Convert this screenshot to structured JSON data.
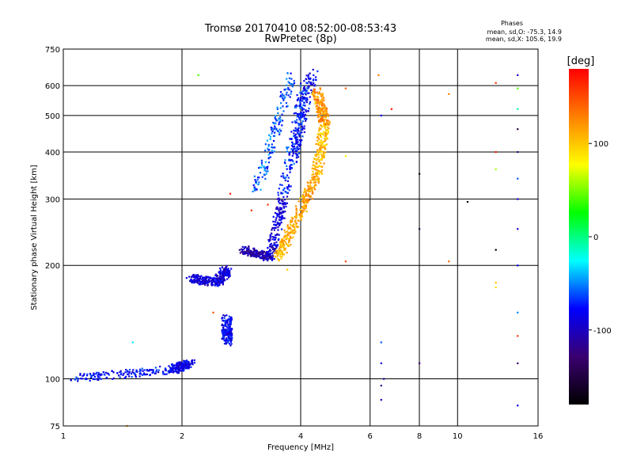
{
  "chart_data": {
    "type": "scatter",
    "title": "Tromsø 20170410 08:52:00-08:53:43",
    "subtitle": "RwPretec (8p)",
    "xlabel": "Frequency [MHz]",
    "ylabel": "Stationary phase Virtual Height [km]",
    "x_scale": "log",
    "y_scale": "log",
    "xlim": [
      1,
      16
    ],
    "ylim": [
      75,
      750
    ],
    "x_ticks": [
      "1",
      "2",
      "4",
      "6",
      "8",
      "10",
      "16"
    ],
    "y_ticks": [
      "75",
      "100",
      "200",
      "300",
      "400",
      "500",
      "600",
      "750"
    ],
    "grid": true,
    "legend": {
      "title": "Phases",
      "lines": [
        "mean, sd,O: -75.3, 14.9",
        "mean, sd,X: 105.6, 19.9"
      ]
    },
    "colorbar": {
      "label": "[deg]",
      "range": [
        -180,
        180
      ],
      "ticks": [
        "100",
        "0",
        "-100"
      ],
      "colors": [
        "#000000",
        "#3a0070",
        "#0000ff",
        "#00ffff",
        "#00ff00",
        "#ffff00",
        "#ff8000",
        "#ff0000"
      ]
    },
    "series": [
      {
        "mode": "O",
        "mean_phase": -75.3,
        "traces": [
          {
            "from": [
              1.05,
              100
            ],
            "to": [
              1.9,
              106
            ],
            "phase": -80
          },
          {
            "from": [
              1.9,
              106
            ],
            "to": [
              2.1,
              110
            ],
            "phase": -85
          },
          {
            "from": [
              2.1,
              185
            ],
            "to": [
              2.45,
              180
            ],
            "phase": -90
          },
          {
            "from": [
              2.45,
              180
            ],
            "to": [
              2.6,
              195
            ],
            "phase": -90
          },
          {
            "from": [
              2.6,
              125
            ],
            "to": [
              2.6,
              145
            ],
            "phase": -80
          },
          {
            "from": [
              2.85,
              220
            ],
            "to": [
              3.35,
              210
            ],
            "phase": -110
          },
          {
            "from": [
              3.35,
              210
            ],
            "to": [
              3.6,
              300
            ],
            "phase": -90
          },
          {
            "from": [
              3.6,
              300
            ],
            "to": [
              4.1,
              620
            ],
            "phase": -70
          },
          {
            "from": [
              3.1,
              320
            ],
            "to": [
              3.8,
              640
            ],
            "phase": -60
          },
          {
            "from": [
              3.8,
              380
            ],
            "to": [
              4.3,
              650
            ],
            "phase": -80
          }
        ]
      },
      {
        "mode": "X",
        "mean_phase": 105.6,
        "traces": [
          {
            "from": [
              3.5,
              210
            ],
            "to": [
              3.9,
              265
            ],
            "phase": 110
          },
          {
            "from": [
              3.9,
              265
            ],
            "to": [
              4.4,
              350
            ],
            "phase": 115
          },
          {
            "from": [
              4.4,
              350
            ],
            "to": [
              4.6,
              480
            ],
            "phase": 105
          },
          {
            "from": [
              4.6,
              480
            ],
            "to": [
              4.4,
              580
            ],
            "phase": 120
          }
        ]
      },
      {
        "mode": "noise",
        "points": [
          [
            6.4,
            88,
            -100
          ],
          [
            6.4,
            96,
            -120
          ],
          [
            6.4,
            110,
            -90
          ],
          [
            6.4,
            125,
            -60
          ],
          [
            6.5,
            100,
            -110
          ],
          [
            6.4,
            500,
            -80
          ],
          [
            6.8,
            520,
            170
          ],
          [
            6.3,
            640,
            130
          ],
          [
            8.0,
            110,
            -130
          ],
          [
            8.0,
            250,
            -150
          ],
          [
            8.0,
            350,
            -170
          ],
          [
            9.5,
            570,
            130
          ],
          [
            9.5,
            205,
            140
          ],
          [
            10.6,
            295,
            -170
          ],
          [
            12.5,
            610,
            160
          ],
          [
            12.5,
            400,
            170
          ],
          [
            12.5,
            360,
            60
          ],
          [
            12.5,
            180,
            100
          ],
          [
            12.5,
            220,
            -180
          ],
          [
            12.5,
            175,
            90
          ],
          [
            14.2,
            640,
            -100
          ],
          [
            14.2,
            590,
            40
          ],
          [
            14.2,
            520,
            -10
          ],
          [
            14.2,
            400,
            -120
          ],
          [
            14.2,
            300,
            -90
          ],
          [
            14.2,
            200,
            -80
          ],
          [
            14.2,
            150,
            -50
          ],
          [
            14.2,
            130,
            160
          ],
          [
            14.2,
            110,
            -130
          ],
          [
            14.2,
            85,
            -80
          ],
          [
            14.2,
            460,
            -150
          ],
          [
            14.2,
            340,
            -60
          ],
          [
            14.2,
            250,
            -100
          ],
          [
            2.2,
            640,
            40
          ],
          [
            5.2,
            590,
            140
          ],
          [
            5.2,
            390,
            80
          ],
          [
            5.2,
            205,
            150
          ],
          [
            2.4,
            150,
            150
          ],
          [
            1.5,
            125,
            -30
          ],
          [
            3.3,
            290,
            160
          ],
          [
            3.0,
            280,
            160
          ],
          [
            3.7,
            195,
            100
          ],
          [
            1.45,
            75,
            120
          ],
          [
            2.65,
            310,
            170
          ]
        ]
      }
    ]
  }
}
